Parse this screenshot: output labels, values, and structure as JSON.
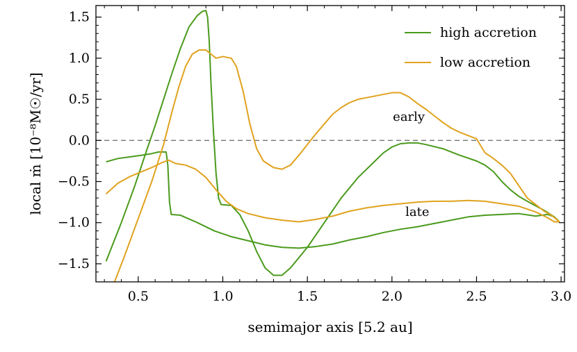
{
  "chart_data": {
    "type": "line",
    "xlabel": "semimajor axis [5.2 au]",
    "ylabel": "local ṁ [10⁻⁸M☉/yr]",
    "xlim": [
      0.25,
      3.02
    ],
    "ylim": [
      -1.72,
      1.64
    ],
    "xticks": [
      "0.5",
      "1.0",
      "1.5",
      "2.0",
      "2.5",
      "3.0"
    ],
    "yticks": [
      "−1.5",
      "−1.0",
      "−0.5",
      "0.0",
      "0.5",
      "1.0",
      "1.5"
    ],
    "reference_line": {
      "y": 0.0,
      "style": "dashed",
      "color": "#666666"
    },
    "colors": {
      "high": "#4a9a1c",
      "low": "#e0a21e"
    },
    "legend": {
      "placement": "top-right",
      "entries": [
        {
          "label": "high accretion",
          "color": "#4a9a1c"
        },
        {
          "label": "low accretion",
          "color": "#e0a21e"
        }
      ]
    },
    "annotations": [
      {
        "text": "early",
        "x": 2.1,
        "y": 0.24
      },
      {
        "text": "late",
        "x": 2.15,
        "y": -0.92
      }
    ],
    "series": [
      {
        "label": "high accretion",
        "color": "#4a9a1c",
        "curve": "early",
        "points": [
          [
            0.31,
            -1.47
          ],
          [
            0.4,
            -1.0
          ],
          [
            0.48,
            -0.55
          ],
          [
            0.55,
            -0.12
          ],
          [
            0.6,
            0.18
          ],
          [
            0.65,
            0.5
          ],
          [
            0.7,
            0.82
          ],
          [
            0.75,
            1.12
          ],
          [
            0.8,
            1.38
          ],
          [
            0.85,
            1.52
          ],
          [
            0.88,
            1.57
          ],
          [
            0.9,
            1.58
          ],
          [
            0.91,
            1.5
          ],
          [
            0.92,
            1.2
          ],
          [
            0.93,
            0.7
          ],
          [
            0.945,
            0.1
          ],
          [
            0.96,
            -0.4
          ],
          [
            0.975,
            -0.7
          ],
          [
            0.99,
            -0.78
          ],
          [
            1.05,
            -0.79
          ],
          [
            1.1,
            -0.9
          ],
          [
            1.15,
            -1.1
          ],
          [
            1.2,
            -1.35
          ],
          [
            1.25,
            -1.55
          ],
          [
            1.3,
            -1.64
          ],
          [
            1.35,
            -1.64
          ],
          [
            1.4,
            -1.55
          ],
          [
            1.5,
            -1.3
          ],
          [
            1.6,
            -1.0
          ],
          [
            1.7,
            -0.7
          ],
          [
            1.8,
            -0.45
          ],
          [
            1.9,
            -0.25
          ],
          [
            1.95,
            -0.15
          ],
          [
            2.0,
            -0.08
          ],
          [
            2.05,
            -0.04
          ],
          [
            2.1,
            -0.03
          ],
          [
            2.15,
            -0.03
          ],
          [
            2.2,
            -0.05
          ],
          [
            2.3,
            -0.1
          ],
          [
            2.4,
            -0.18
          ],
          [
            2.5,
            -0.25
          ],
          [
            2.55,
            -0.3
          ],
          [
            2.6,
            -0.38
          ],
          [
            2.65,
            -0.5
          ],
          [
            2.7,
            -0.6
          ],
          [
            2.75,
            -0.68
          ],
          [
            2.8,
            -0.74
          ],
          [
            2.9,
            -0.85
          ],
          [
            2.96,
            -0.93
          ],
          [
            2.99,
            -0.99
          ]
        ]
      },
      {
        "label": "high accretion",
        "color": "#4a9a1c",
        "curve": "late",
        "points": [
          [
            0.31,
            -0.26
          ],
          [
            0.38,
            -0.22
          ],
          [
            0.45,
            -0.2
          ],
          [
            0.52,
            -0.18
          ],
          [
            0.58,
            -0.16
          ],
          [
            0.62,
            -0.14
          ],
          [
            0.665,
            -0.14
          ],
          [
            0.675,
            -0.3
          ],
          [
            0.685,
            -0.75
          ],
          [
            0.695,
            -0.9
          ],
          [
            0.75,
            -0.91
          ],
          [
            0.85,
            -1.0
          ],
          [
            0.95,
            -1.1
          ],
          [
            1.05,
            -1.17
          ],
          [
            1.15,
            -1.22
          ],
          [
            1.25,
            -1.27
          ],
          [
            1.35,
            -1.3
          ],
          [
            1.45,
            -1.31
          ],
          [
            1.55,
            -1.29
          ],
          [
            1.65,
            -1.26
          ],
          [
            1.75,
            -1.21
          ],
          [
            1.85,
            -1.17
          ],
          [
            1.95,
            -1.12
          ],
          [
            2.05,
            -1.08
          ],
          [
            2.15,
            -1.05
          ],
          [
            2.25,
            -1.01
          ],
          [
            2.35,
            -0.97
          ],
          [
            2.45,
            -0.93
          ],
          [
            2.55,
            -0.91
          ],
          [
            2.65,
            -0.9
          ],
          [
            2.75,
            -0.89
          ],
          [
            2.85,
            -0.92
          ],
          [
            2.92,
            -0.9
          ],
          [
            2.96,
            -0.93
          ],
          [
            2.99,
            -0.99
          ]
        ]
      },
      {
        "label": "low accretion",
        "color": "#e0a21e",
        "curve": "early",
        "points": [
          [
            0.36,
            -1.72
          ],
          [
            0.42,
            -1.4
          ],
          [
            0.5,
            -0.95
          ],
          [
            0.58,
            -0.5
          ],
          [
            0.65,
            -0.05
          ],
          [
            0.7,
            0.35
          ],
          [
            0.74,
            0.65
          ],
          [
            0.78,
            0.9
          ],
          [
            0.82,
            1.05
          ],
          [
            0.86,
            1.1
          ],
          [
            0.9,
            1.1
          ],
          [
            0.93,
            1.05
          ],
          [
            0.96,
            1.0
          ],
          [
            1.0,
            1.02
          ],
          [
            1.05,
            1.0
          ],
          [
            1.08,
            0.9
          ],
          [
            1.12,
            0.6
          ],
          [
            1.16,
            0.2
          ],
          [
            1.2,
            -0.1
          ],
          [
            1.24,
            -0.25
          ],
          [
            1.3,
            -0.33
          ],
          [
            1.35,
            -0.35
          ],
          [
            1.4,
            -0.3
          ],
          [
            1.45,
            -0.18
          ],
          [
            1.5,
            -0.05
          ],
          [
            1.55,
            0.08
          ],
          [
            1.6,
            0.2
          ],
          [
            1.65,
            0.32
          ],
          [
            1.7,
            0.4
          ],
          [
            1.75,
            0.46
          ],
          [
            1.8,
            0.5
          ],
          [
            1.85,
            0.52
          ],
          [
            1.9,
            0.54
          ],
          [
            1.95,
            0.56
          ],
          [
            2.0,
            0.58
          ],
          [
            2.05,
            0.58
          ],
          [
            2.1,
            0.53
          ],
          [
            2.15,
            0.45
          ],
          [
            2.2,
            0.38
          ],
          [
            2.25,
            0.3
          ],
          [
            2.3,
            0.22
          ],
          [
            2.35,
            0.15
          ],
          [
            2.4,
            0.1
          ],
          [
            2.45,
            0.06
          ],
          [
            2.5,
            0.02
          ],
          [
            2.55,
            -0.15
          ],
          [
            2.6,
            -0.22
          ],
          [
            2.65,
            -0.3
          ],
          [
            2.7,
            -0.4
          ],
          [
            2.75,
            -0.55
          ],
          [
            2.8,
            -0.7
          ],
          [
            2.85,
            -0.78
          ],
          [
            2.9,
            -0.86
          ],
          [
            2.95,
            -0.92
          ],
          [
            2.99,
            -0.99
          ]
        ]
      },
      {
        "label": "low accretion",
        "color": "#e0a21e",
        "curve": "late",
        "points": [
          [
            0.31,
            -0.65
          ],
          [
            0.38,
            -0.52
          ],
          [
            0.45,
            -0.44
          ],
          [
            0.52,
            -0.38
          ],
          [
            0.58,
            -0.33
          ],
          [
            0.64,
            -0.27
          ],
          [
            0.68,
            -0.24
          ],
          [
            0.72,
            -0.28
          ],
          [
            0.78,
            -0.3
          ],
          [
            0.84,
            -0.35
          ],
          [
            0.9,
            -0.45
          ],
          [
            0.96,
            -0.6
          ],
          [
            1.02,
            -0.74
          ],
          [
            1.08,
            -0.83
          ],
          [
            1.15,
            -0.89
          ],
          [
            1.25,
            -0.94
          ],
          [
            1.35,
            -0.97
          ],
          [
            1.45,
            -0.99
          ],
          [
            1.55,
            -0.96
          ],
          [
            1.65,
            -0.92
          ],
          [
            1.75,
            -0.86
          ],
          [
            1.85,
            -0.82
          ],
          [
            1.95,
            -0.79
          ],
          [
            2.05,
            -0.77
          ],
          [
            2.15,
            -0.75
          ],
          [
            2.25,
            -0.74
          ],
          [
            2.35,
            -0.74
          ],
          [
            2.45,
            -0.73
          ],
          [
            2.55,
            -0.74
          ],
          [
            2.65,
            -0.77
          ],
          [
            2.75,
            -0.8
          ],
          [
            2.85,
            -0.87
          ],
          [
            2.92,
            -0.94
          ],
          [
            2.96,
            -0.99
          ],
          [
            2.99,
            -0.99
          ]
        ]
      }
    ]
  }
}
